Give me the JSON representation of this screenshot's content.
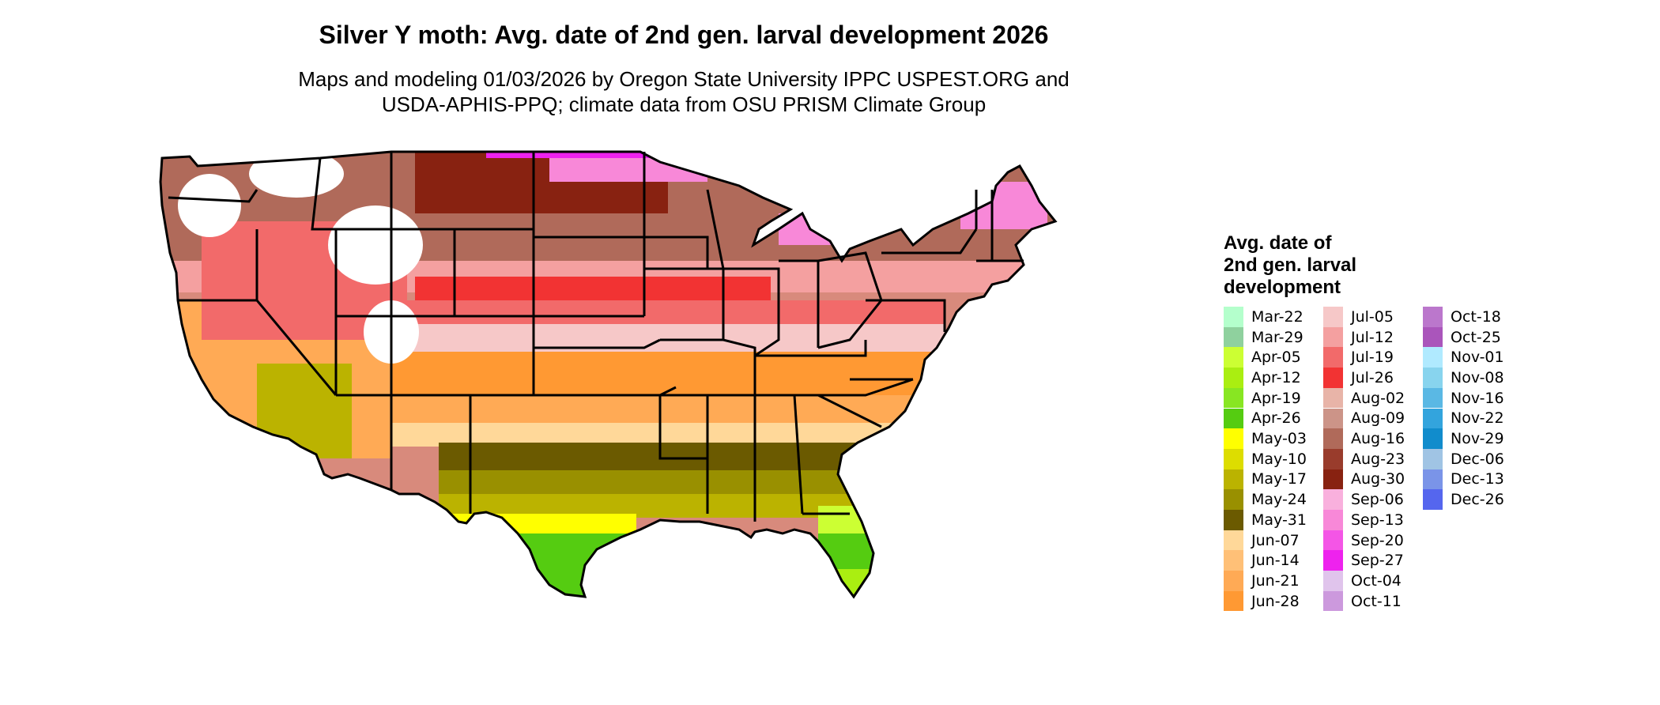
{
  "header": {
    "title": "Silver Y moth: Avg. date of 2nd gen. larval development 2026",
    "subtitle_line1": "Maps and modeling 01/03/2026 by Oregon State University IPPC USPEST.ORG and",
    "subtitle_line2": "USDA-APHIS-PPQ; climate data from OSU PRISM Climate Group"
  },
  "legend": {
    "title_line1": "Avg. date of",
    "title_line2": "2nd gen. larval",
    "title_line3": "development",
    "items": [
      {
        "label": "Mar-22",
        "color": "#b4ffcc"
      },
      {
        "label": "Mar-29",
        "color": "#8fd19e"
      },
      {
        "label": "Apr-05",
        "color": "#ccff33"
      },
      {
        "label": "Apr-12",
        "color": "#aaee11"
      },
      {
        "label": "Apr-19",
        "color": "#88e622"
      },
      {
        "label": "Apr-26",
        "color": "#55cc11"
      },
      {
        "label": "May-03",
        "color": "#ffff00"
      },
      {
        "label": "May-10",
        "color": "#dddd00"
      },
      {
        "label": "May-17",
        "color": "#bbb300"
      },
      {
        "label": "May-24",
        "color": "#999000"
      },
      {
        "label": "May-31",
        "color": "#6b5a00"
      },
      {
        "label": "Jun-07",
        "color": "#ffd899"
      },
      {
        "label": "Jun-14",
        "color": "#ffc077"
      },
      {
        "label": "Jun-21",
        "color": "#ffaa55"
      },
      {
        "label": "Jun-28",
        "color": "#ff9933"
      },
      {
        "label": "Jul-05",
        "color": "#f6c8c8"
      },
      {
        "label": "Jul-12",
        "color": "#f4a0a0"
      },
      {
        "label": "Jul-19",
        "color": "#f26a6a"
      },
      {
        "label": "Jul-26",
        "color": "#f23333"
      },
      {
        "label": "Aug-02",
        "color": "#e8b4a8"
      },
      {
        "label": "Aug-09",
        "color": "#cc9488"
      },
      {
        "label": "Aug-16",
        "color": "#b06a5a"
      },
      {
        "label": "Aug-23",
        "color": "#993c2c"
      },
      {
        "label": "Aug-30",
        "color": "#882211"
      },
      {
        "label": "Sep-06",
        "color": "#f9b0dd"
      },
      {
        "label": "Sep-13",
        "color": "#f888d8"
      },
      {
        "label": "Sep-20",
        "color": "#f455e6"
      },
      {
        "label": "Sep-27",
        "color": "#ee22ee"
      },
      {
        "label": "Oct-04",
        "color": "#e0c4ec"
      },
      {
        "label": "Oct-11",
        "color": "#cc99dd"
      },
      {
        "label": "Oct-18",
        "color": "#bb77cc"
      },
      {
        "label": "Oct-25",
        "color": "#aa55bb"
      },
      {
        "label": "Nov-01",
        "color": "#b0eaff"
      },
      {
        "label": "Nov-08",
        "color": "#88d4ee"
      },
      {
        "label": "Nov-16",
        "color": "#5ab8e4"
      },
      {
        "label": "Nov-22",
        "color": "#33a4dd"
      },
      {
        "label": "Nov-29",
        "color": "#118ccc"
      },
      {
        "label": "Dec-06",
        "color": "#a0c4e4"
      },
      {
        "label": "Dec-13",
        "color": "#7a94e8"
      },
      {
        "label": "Dec-26",
        "color": "#5566ee"
      }
    ]
  }
}
